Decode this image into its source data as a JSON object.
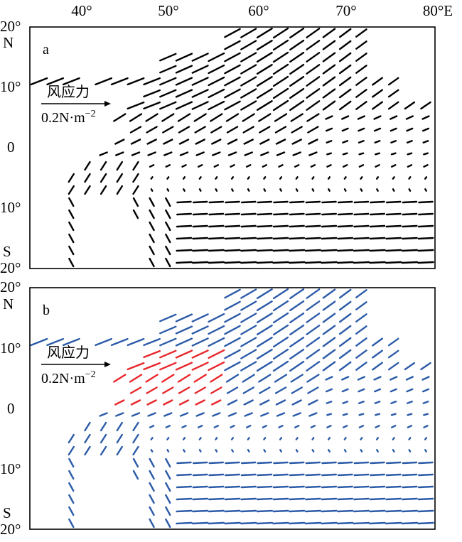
{
  "figure": {
    "x_tick_labels": [
      "40°",
      "50°",
      "60°",
      "70°",
      "80°E"
    ],
    "y_tick_labels": [
      "20°",
      "N",
      "10°",
      "0",
      "10°",
      "S",
      "20°"
    ],
    "colors": {
      "default_vectors": "#000000",
      "panel_b_vectors": "#2b5ba8",
      "highlight_vectors": "#e8262a"
    }
  },
  "panels": [
    {
      "letter": "a",
      "scale_title": "风应力",
      "scale_unit": "0.2N·m",
      "scale_exp": "−2"
    },
    {
      "letter": "b",
      "scale_title": "风应力",
      "scale_unit": "0.2N·m",
      "scale_exp": "−2"
    }
  ],
  "chart_data": {
    "type": "vector-field",
    "x_range": [
      36,
      80
    ],
    "y_range": [
      -20,
      20
    ],
    "x_ticks": [
      40,
      50,
      60,
      70,
      80
    ],
    "y_ticks": [
      20,
      10,
      0,
      -10,
      -20
    ],
    "vector_scale": "0.2 N·m^-2",
    "highlight_region_panel_b": {
      "lon": [
        38,
        57
      ],
      "lat": [
        0,
        10
      ]
    }
  }
}
